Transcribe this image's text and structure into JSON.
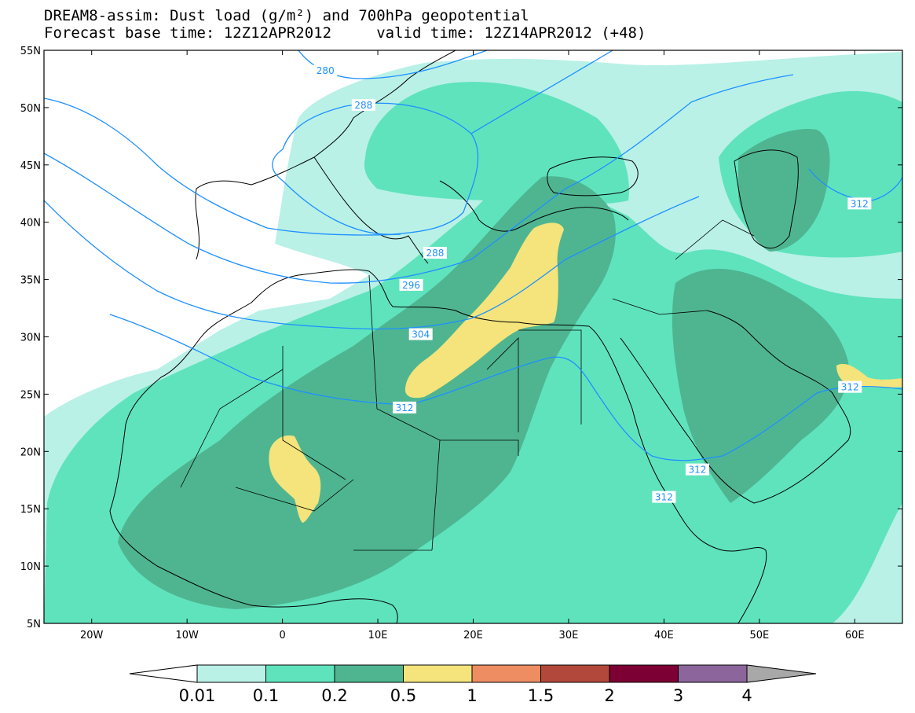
{
  "title": {
    "line1": "DREAM8-assim: Dust load (g/m²) and 700hPa geopotential",
    "line2": "Forecast base time: 12Z12APR2012     valid time: 12Z14APR2012 (+48)"
  },
  "axes": {
    "x_ticks": [
      "20W",
      "10W",
      "0",
      "10E",
      "20E",
      "30E",
      "40E",
      "50E",
      "60E"
    ],
    "y_ticks": [
      "55N",
      "50N",
      "45N",
      "40N",
      "35N",
      "30N",
      "25N",
      "20N",
      "15N",
      "10N",
      "5N"
    ],
    "lon_range": [
      -25,
      65
    ],
    "lat_range": [
      5,
      55
    ]
  },
  "contour_labels": [
    {
      "text": "280",
      "lon": 4.5,
      "lat": 53.2
    },
    {
      "text": "288",
      "lon": 8.5,
      "lat": 50.2
    },
    {
      "text": "288",
      "lon": 16.0,
      "lat": 37.3
    },
    {
      "text": "296",
      "lon": 13.5,
      "lat": 34.5
    },
    {
      "text": "304",
      "lon": 14.5,
      "lat": 30.2
    },
    {
      "text": "312",
      "lon": 12.8,
      "lat": 23.8
    },
    {
      "text": "312",
      "lon": 43.5,
      "lat": 18.4
    },
    {
      "text": "312",
      "lon": 40.0,
      "lat": 16.0
    },
    {
      "text": "312",
      "lon": 60.5,
      "lat": 41.6
    },
    {
      "text": "312",
      "lon": 59.5,
      "lat": 25.6
    }
  ],
  "colorbar": {
    "labels": [
      "0.01",
      "0.1",
      "0.2",
      "0.5",
      "1",
      "1.5",
      "2",
      "3",
      "4"
    ],
    "colors": [
      "#b9f1e7",
      "#5fe3bd",
      "#4fb591",
      "#f4e47b",
      "#ee8d62",
      "#b2483b",
      "#7c0033",
      "#8c659c"
    ],
    "low_color": "#ffffff",
    "high_color": "#a8a8a8"
  },
  "colors": {
    "geopotential_contour": "#1e90ff",
    "coastline": "#000000"
  }
}
